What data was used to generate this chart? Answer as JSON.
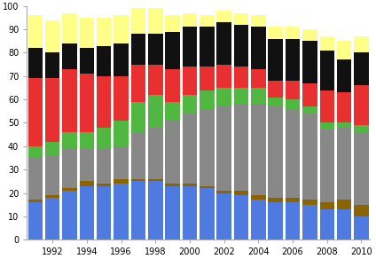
{
  "years": [
    1991,
    1992,
    1993,
    1994,
    1995,
    1996,
    1997,
    1998,
    1999,
    2000,
    2001,
    2002,
    2003,
    2004,
    2005,
    2006,
    2007,
    2008,
    2009,
    2010
  ],
  "blue": [
    16,
    18,
    21,
    23,
    23,
    24,
    25,
    25,
    23,
    23,
    22,
    20,
    19,
    17,
    16,
    16,
    15,
    13,
    13,
    10
  ],
  "brown": [
    1,
    1,
    1,
    2,
    1,
    2,
    1,
    1,
    1,
    1,
    1,
    1,
    2,
    2,
    2,
    2,
    2,
    3,
    4,
    5
  ],
  "gray": [
    18,
    17,
    17,
    14,
    15,
    14,
    20,
    22,
    27,
    30,
    33,
    36,
    37,
    39,
    39,
    38,
    37,
    31,
    31,
    31
  ],
  "green": [
    5,
    6,
    7,
    7,
    9,
    11,
    13,
    14,
    8,
    8,
    8,
    8,
    7,
    7,
    4,
    4,
    3,
    3,
    2,
    3
  ],
  "red": [
    29,
    27,
    27,
    25,
    22,
    19,
    16,
    13,
    14,
    12,
    10,
    10,
    9,
    8,
    7,
    8,
    10,
    14,
    13,
    17
  ],
  "black": [
    13,
    11,
    11,
    11,
    13,
    14,
    13,
    13,
    16,
    17,
    17,
    18,
    18,
    18,
    18,
    18,
    18,
    17,
    14,
    14
  ],
  "yellow": [
    14,
    14,
    13,
    13,
    12,
    12,
    11,
    11,
    7,
    6,
    5,
    5,
    5,
    5,
    5,
    5,
    5,
    6,
    8,
    7
  ],
  "colors": [
    "#4f7be0",
    "#8B6400",
    "#888888",
    "#50b840",
    "#e83030",
    "#111111",
    "#ffff88"
  ],
  "ylim": [
    0,
    100
  ],
  "yticks": [
    0,
    10,
    20,
    30,
    40,
    50,
    60,
    70,
    80,
    90,
    100
  ],
  "background_color": "#ffffff",
  "figsize": [
    4.24,
    2.92
  ],
  "dpi": 100
}
